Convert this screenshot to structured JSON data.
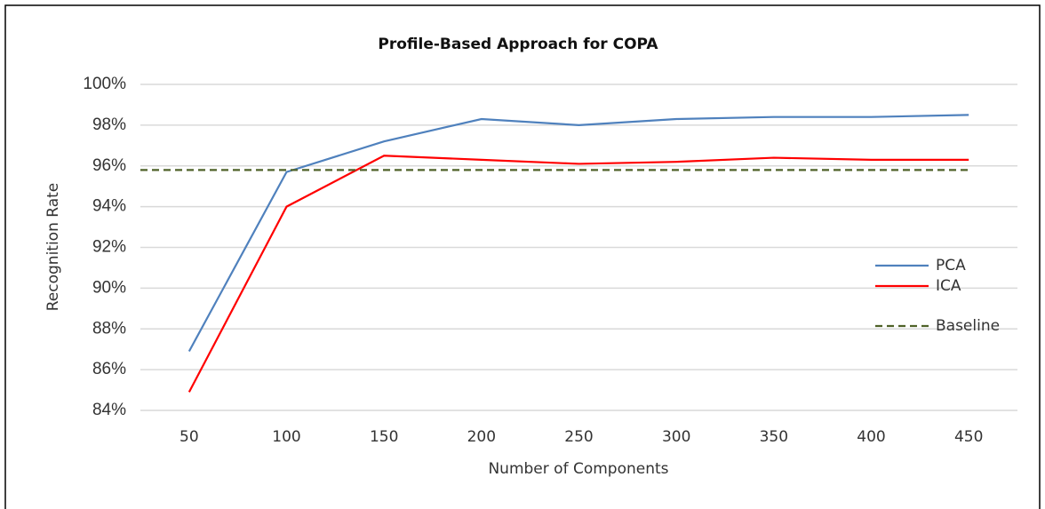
{
  "chart_data": {
    "type": "line",
    "title": "Profile-Based Approach for COPA",
    "x_label": "Number of Components",
    "y_label": "Recognition Rate",
    "categories": [
      "50",
      "100",
      "150",
      "200",
      "250",
      "300",
      "350",
      "400",
      "450"
    ],
    "series": [
      {
        "name": "PCA",
        "color": "#4f81bd",
        "values": [
          86.9,
          95.7,
          97.2,
          98.3,
          98.0,
          98.3,
          98.4,
          98.4,
          98.5
        ]
      },
      {
        "name": "ICA",
        "color": "#ff0000",
        "values": [
          84.9,
          94.0,
          96.5,
          96.3,
          96.1,
          96.2,
          96.4,
          96.3,
          96.3
        ]
      }
    ],
    "baseline": {
      "name": "Baseline",
      "value": 95.8,
      "color": "#4f6228"
    },
    "ylim": [
      84,
      100
    ],
    "yticks": [
      {
        "value": 84,
        "label": "84%"
      },
      {
        "value": 86,
        "label": "86%"
      },
      {
        "value": 88,
        "label": "88%"
      },
      {
        "value": 90,
        "label": "90%"
      },
      {
        "value": 92,
        "label": "92%"
      },
      {
        "value": 94,
        "label": "94%"
      },
      {
        "value": 96,
        "label": "96%"
      },
      {
        "value": 98,
        "label": "98%"
      },
      {
        "value": 100,
        "label": "100%"
      }
    ],
    "grid": true,
    "legend": "right"
  }
}
